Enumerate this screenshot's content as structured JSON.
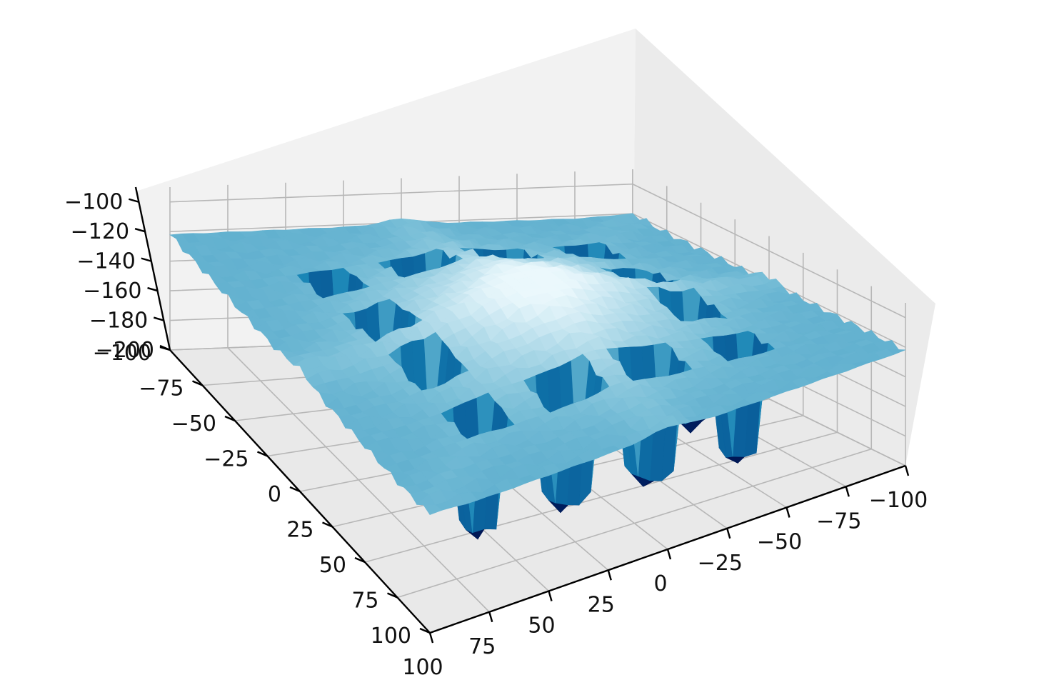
{
  "chart_data": {
    "type": "surface3d",
    "title": "",
    "colormap": "ocean_r",
    "x_axis": {
      "label": "",
      "range": [
        -100,
        100
      ],
      "ticks": [
        100,
        75,
        50,
        25,
        0,
        -25,
        -50,
        -75,
        -100
      ],
      "tick_labels": [
        "100",
        "75",
        "50",
        "25",
        "0",
        "−25",
        "−50",
        "−75",
        "−100"
      ]
    },
    "y_axis": {
      "label": "",
      "range": [
        -100,
        100
      ],
      "ticks": [
        -100,
        -75,
        -50,
        -25,
        0,
        25,
        50,
        75,
        100
      ],
      "tick_labels": [
        "−100",
        "−75",
        "−50",
        "−25",
        "0",
        "25",
        "50",
        "75",
        "100"
      ]
    },
    "z_axis": {
      "label": "",
      "range": [
        -200,
        -90
      ],
      "ticks": [
        -100,
        -120,
        -140,
        -160,
        -180,
        -200
      ],
      "tick_labels": [
        "−100",
        "−120",
        "−140",
        "−160",
        "−180",
        "−200"
      ]
    },
    "surface": {
      "description_values": {
        "z_center": -92,
        "z_ridges": -112,
        "z_plateaus": -122,
        "z_wells": -200
      }
    },
    "grid": true
  }
}
